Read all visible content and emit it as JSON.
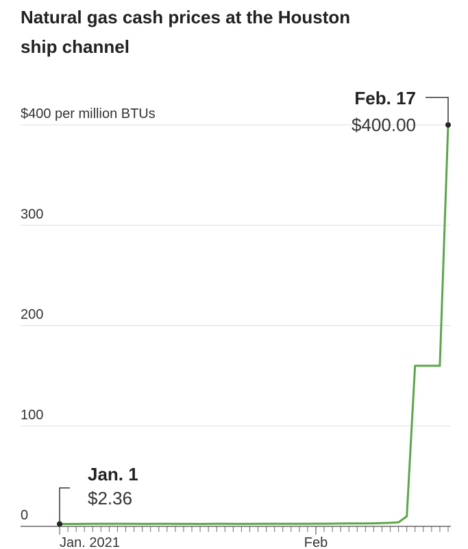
{
  "chart_data": {
    "type": "line",
    "title": "Natural gas cash prices at the Houston ship channel",
    "x": [
      "2021-01-01",
      "2021-01-02",
      "2021-01-03",
      "2021-01-04",
      "2021-01-05",
      "2021-01-06",
      "2021-01-07",
      "2021-01-08",
      "2021-01-09",
      "2021-01-10",
      "2021-01-11",
      "2021-01-12",
      "2021-01-13",
      "2021-01-14",
      "2021-01-15",
      "2021-01-16",
      "2021-01-17",
      "2021-01-18",
      "2021-01-19",
      "2021-01-20",
      "2021-01-21",
      "2021-01-22",
      "2021-01-23",
      "2021-01-24",
      "2021-01-25",
      "2021-01-26",
      "2021-01-27",
      "2021-01-28",
      "2021-01-29",
      "2021-01-30",
      "2021-01-31",
      "2021-02-01",
      "2021-02-02",
      "2021-02-03",
      "2021-02-04",
      "2021-02-05",
      "2021-02-06",
      "2021-02-07",
      "2021-02-08",
      "2021-02-09",
      "2021-02-10",
      "2021-02-11",
      "2021-02-12",
      "2021-02-13",
      "2021-02-14",
      "2021-02-15",
      "2021-02-16",
      "2021-02-17"
    ],
    "series": [
      {
        "name": "Houston ship channel",
        "color": "#5aa64a",
        "values": [
          2.36,
          2.4,
          2.4,
          2.45,
          2.5,
          2.5,
          2.55,
          2.5,
          2.5,
          2.5,
          2.45,
          2.45,
          2.5,
          2.5,
          2.45,
          2.45,
          2.45,
          2.4,
          2.45,
          2.5,
          2.5,
          2.45,
          2.45,
          2.45,
          2.5,
          2.55,
          2.6,
          2.6,
          2.6,
          2.6,
          2.6,
          2.65,
          2.7,
          2.75,
          2.8,
          2.9,
          2.9,
          2.9,
          3,
          3.2,
          3.5,
          4,
          10,
          160,
          160,
          160,
          160,
          400
        ]
      }
    ],
    "xlim": [
      "2021-01-01",
      "2021-02-17"
    ],
    "xticks": [
      {
        "value": "2021-01-01",
        "label": "Jan. 2021"
      },
      {
        "value": "2021-02-01",
        "label": "Feb"
      }
    ],
    "ylim": [
      0,
      400
    ],
    "yticks": [
      0,
      100,
      200,
      300,
      {
        "value": 400,
        "label": "$400 per million BTUs"
      }
    ],
    "grid": true,
    "annotations": [
      {
        "date": "Jan. 1",
        "value": "$2.36"
      },
      {
        "date": "Feb. 17",
        "value": "$400.00"
      }
    ]
  }
}
